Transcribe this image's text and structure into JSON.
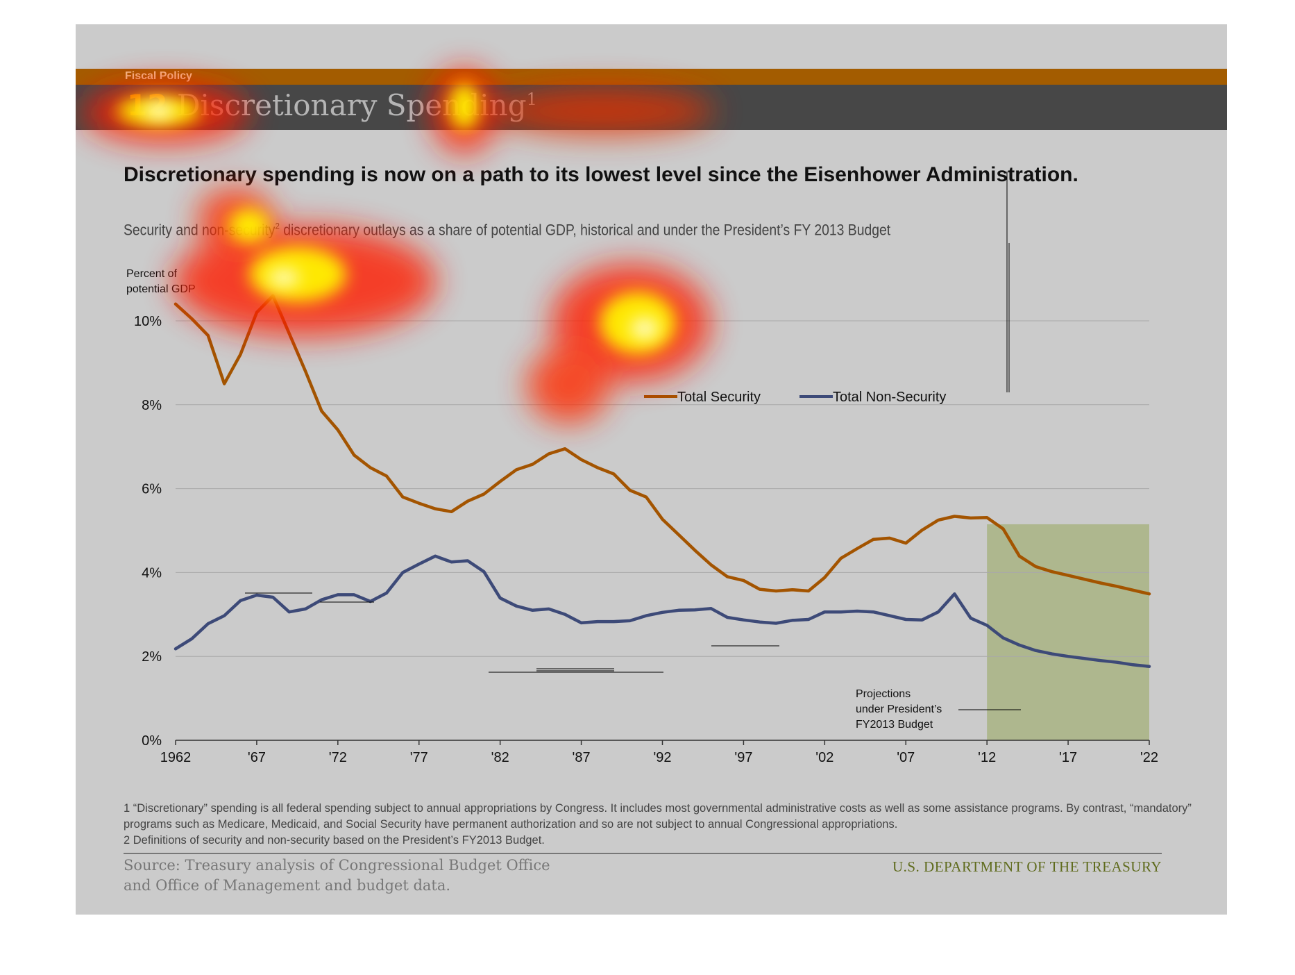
{
  "header": {
    "section_label": "Fiscal Policy",
    "section_number": "12",
    "section_title": "Discretionary Spending",
    "section_title_footnote": "1"
  },
  "headline": "Discretionary spending is now on a path to its lowest level since the Eisenhower Administration.",
  "subtitle": {
    "part1": "Security and non-security",
    "footnote": "2",
    "part2": " discretionary outlays as a share of potential GDP, historical and under the President’s FY 2013 Budget"
  },
  "chart_data": {
    "type": "line",
    "ylabel_line1": "Percent of",
    "ylabel_line2": "potential GDP",
    "ylim": [
      0,
      10
    ],
    "xlim": [
      1962,
      2022
    ],
    "y_ticks": [
      "0%",
      "2%",
      "4%",
      "6%",
      "8%",
      "10%"
    ],
    "x_ticks": [
      "1962",
      "'67",
      "'72",
      "'77",
      "'82",
      "'87",
      "'92",
      "'97",
      "'02",
      "'07",
      "'12",
      "'17",
      "'22"
    ],
    "grid": "horizontal",
    "legend_position": "center-right",
    "projection_region": {
      "start": 2012,
      "end": 2022,
      "label_lines": [
        "Projections",
        "under President’s",
        "FY2013 Budget"
      ],
      "color": "#aeb78e"
    },
    "series": [
      {
        "name": "Total Security",
        "color": "#a35400",
        "x": [
          1962,
          1963,
          1964,
          1965,
          1966,
          1967,
          1968,
          1969,
          1970,
          1971,
          1972,
          1973,
          1974,
          1975,
          1976,
          1977,
          1978,
          1979,
          1980,
          1981,
          1982,
          1983,
          1984,
          1985,
          1986,
          1987,
          1988,
          1989,
          1990,
          1991,
          1992,
          1993,
          1994,
          1995,
          1996,
          1997,
          1998,
          1999,
          2000,
          2001,
          2002,
          2003,
          2004,
          2005,
          2006,
          2007,
          2008,
          2009,
          2010,
          2011,
          2012,
          2013,
          2014,
          2015,
          2016,
          2017,
          2018,
          2019,
          2020,
          2021,
          2022
        ],
        "values": [
          10.4,
          10.05,
          9.65,
          8.5,
          9.2,
          10.2,
          10.6,
          9.7,
          8.8,
          7.85,
          7.4,
          6.8,
          6.5,
          6.3,
          5.8,
          5.65,
          5.52,
          5.45,
          5.7,
          5.87,
          6.17,
          6.45,
          6.58,
          6.83,
          6.95,
          6.69,
          6.5,
          6.35,
          5.96,
          5.8,
          5.27,
          4.9,
          4.53,
          4.18,
          3.9,
          3.81,
          3.6,
          3.56,
          3.59,
          3.56,
          3.88,
          4.34,
          4.57,
          4.79,
          4.82,
          4.7,
          5.01,
          5.25,
          5.34,
          5.3,
          5.31,
          5.04,
          4.39,
          4.14,
          4.02,
          3.93,
          3.84,
          3.75,
          3.67,
          3.58,
          3.49
        ]
      },
      {
        "name": "Total Non-Security",
        "color": "#3d4a78",
        "x": [
          1962,
          1963,
          1964,
          1965,
          1966,
          1967,
          1968,
          1969,
          1970,
          1971,
          1972,
          1973,
          1974,
          1975,
          1976,
          1977,
          1978,
          1979,
          1980,
          1981,
          1982,
          1983,
          1984,
          1985,
          1986,
          1987,
          1988,
          1989,
          1990,
          1991,
          1992,
          1993,
          1994,
          1995,
          1996,
          1997,
          1998,
          1999,
          2000,
          2001,
          2002,
          2003,
          2004,
          2005,
          2006,
          2007,
          2008,
          2009,
          2010,
          2011,
          2012,
          2013,
          2014,
          2015,
          2016,
          2017,
          2018,
          2019,
          2020,
          2021,
          2022
        ],
        "values": [
          2.18,
          2.42,
          2.78,
          2.97,
          3.33,
          3.46,
          3.41,
          3.06,
          3.13,
          3.35,
          3.47,
          3.47,
          3.31,
          3.51,
          4.0,
          4.2,
          4.39,
          4.25,
          4.28,
          4.02,
          3.39,
          3.2,
          3.1,
          3.13,
          3.0,
          2.8,
          2.83,
          2.83,
          2.85,
          2.97,
          3.05,
          3.1,
          3.11,
          3.14,
          2.93,
          2.87,
          2.82,
          2.79,
          2.86,
          2.88,
          3.06,
          3.06,
          3.08,
          3.06,
          2.97,
          2.88,
          2.87,
          3.06,
          3.49,
          2.91,
          2.74,
          2.44,
          2.27,
          2.14,
          2.06,
          2.0,
          1.95,
          1.9,
          1.86,
          1.8,
          1.76
        ]
      }
    ]
  },
  "footnotes": [
    "1 “Discretionary” spending is all federal spending subject to annual appropriations by Congress. It includes most governmental administrative costs as well as some assistance programs. By contrast, “mandatory” programs such as Medicare, Medicaid, and Social Security have permanent authorization and so are not subject to annual Congressional appropriations.",
    "2 Definitions of security and non-security based on the President’s FY2013 Budget."
  ],
  "footer": {
    "source_line1": "Source: Treasury analysis of Congressional Budget Office",
    "source_line2": "and Office of Management and budget data.",
    "department": "U.S. DEPARTMENT OF THE TREASURY"
  },
  "colors": {
    "slide_background": "#cbcbcb",
    "header_accent": "#a35c00",
    "header_dark": "#474747",
    "department_text": "#5f6b1d"
  }
}
